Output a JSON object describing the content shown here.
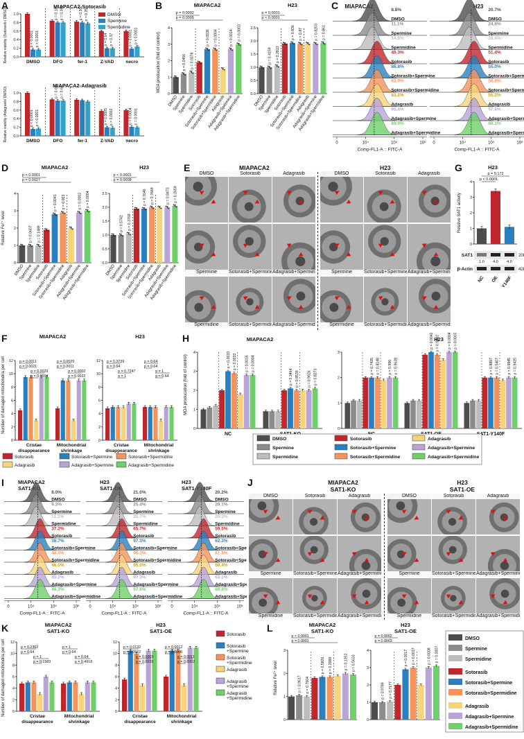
{
  "panel_letters": {
    "A": "A",
    "B": "B",
    "C": "C",
    "D": "D",
    "E": "E",
    "F": "F",
    "G": "G",
    "H": "H",
    "I": "I",
    "J": "J",
    "K": "K",
    "L": "L"
  },
  "colors": {
    "dmso": "#4d4d4d",
    "spermine": "#8c8c8c",
    "spermidine": "#bdbdbd",
    "soto": "#c0272d",
    "soto_spm": "#2a7fc1",
    "soto_spd": "#f4945c",
    "adag": "#f7d37a",
    "adag_spm": "#b9a4d6",
    "adag_spd": "#6fcf6a",
    "a_dmso": "#c0272d",
    "a_spm": "#2a7fc1",
    "a_spd": "#2fa3c9"
  },
  "A": {
    "title1": "MIAPACA2-Sotorasib",
    "title2": "MIAPACA2-Adagrasib",
    "legend": [
      "DMSO",
      "Spermine",
      "Spermidine"
    ],
    "ylabel1": "Relative viability (Sotorasib / DMSO)",
    "ylabel2": "Relative viability (Adagrasib/ DMSO)",
    "ticks": [
      "0.0",
      "0.2",
      "0.4",
      "0.6",
      "0.8",
      "1.0"
    ],
    "groups": [
      "DMSO",
      "DFO",
      "fer-1",
      "Z-VAD",
      "necro"
    ],
    "pvals1": [
      "p < 0.0001",
      "p < 0.0001",
      "p = 0.18",
      "p = 0.081",
      "p = 0.92",
      "p = 0.25",
      "p = 0.64",
      "p = 0.37",
      "p < 0.0001",
      "p < 0.0001"
    ],
    "pvals2": [
      "p < 0.0001",
      "p < 0.0001",
      "p = 0.69",
      "p = 0.65",
      "",
      "",
      "p = 0.0005",
      "p = 0.0002",
      "p = 0.0004",
      "p = 0.0001"
    ]
  },
  "chart_data": [
    {
      "type": "bar",
      "title": "MIAPACA2-Sotorasib",
      "categories": [
        "DMSO",
        "DFO",
        "fer-1",
        "Z-VAD",
        "necro"
      ],
      "ylim": [
        0,
        1.0
      ],
      "series": [
        {
          "name": "DMSO",
          "values": [
            1.0,
            0.84,
            0.82,
            0.6,
            0.6
          ]
        },
        {
          "name": "Spermine",
          "values": [
            0.17,
            0.8,
            0.8,
            0.2,
            0.19
          ]
        },
        {
          "name": "Spermidine",
          "values": [
            0.17,
            0.8,
            0.78,
            0.2,
            0.24
          ]
        }
      ]
    },
    {
      "type": "bar",
      "title": "MIAPACA2-Adagrasib",
      "categories": [
        "DMSO",
        "DFO",
        "fer-1",
        "Z-VAD",
        "necro"
      ],
      "ylim": [
        0,
        1.0
      ],
      "series": [
        {
          "name": "DMSO",
          "values": [
            1.0,
            0.85,
            0.84,
            0.58,
            0.6
          ]
        },
        {
          "name": "Spermine",
          "values": [
            0.16,
            0.82,
            0.83,
            0.2,
            0.21
          ]
        },
        {
          "name": "Spermidine",
          "values": [
            0.17,
            0.82,
            0.8,
            0.19,
            0.2
          ]
        }
      ]
    },
    {
      "type": "bar",
      "title": "MIAPACA2",
      "ylabel": "MDA producation (fold of control)",
      "ylim": [
        0,
        4
      ],
      "categories": [
        "DMSO",
        "Spermine",
        "Spermidine",
        "Sotorasib",
        "Sotorasib+Spermine",
        "Sotorasib+Spermidine",
        "Adagrasib",
        "Adagrasib+Spermine",
        "Adagrasib+Spermidine"
      ],
      "values": [
        1.0,
        1.2,
        1.3,
        1.9,
        2.7,
        2.7,
        1.5,
        2.7,
        3.0
      ]
    },
    {
      "type": "bar",
      "title": "H23",
      "ylim": [
        0,
        2.5
      ],
      "categories": [
        "DMSO",
        "Spermine",
        "Spermidine",
        "Sotorasib",
        "Sotorasib+Spermine",
        "Sotorasib+Spermidine",
        "Adagrasib",
        "Adagrasib+Spermine",
        "Adagrasib+Spermidine"
      ],
      "values": [
        1.0,
        1.0,
        1.05,
        1.9,
        1.92,
        1.9,
        1.9,
        1.9,
        1.92
      ]
    },
    {
      "type": "bar",
      "title": "MIAPACA2",
      "ylabel": "Relative Fe2+ level",
      "ylim": [
        0,
        4
      ],
      "categories": [
        "DMSO",
        "Spermine",
        "Spermidine",
        "Sotorasib",
        "Sotorasib+Spermine",
        "Sotorasib+Spermidine",
        "Adagrasib",
        "Adagrasib+Spermine",
        "Adagrasib+Spermidine"
      ],
      "values": [
        1.0,
        1.0,
        1.0,
        1.9,
        2.8,
        2.9,
        2.0,
        2.9,
        3.0
      ]
    },
    {
      "type": "bar",
      "title": "H23",
      "ylim": [
        0,
        2.5
      ],
      "categories": [
        "DMSO",
        "Spermine",
        "Spermidine",
        "Sotorasib",
        "Sotorasib+Spermine",
        "Sotorasib+Spermidine",
        "Adagrasib",
        "Adagrasib+Spermine",
        "Adagrasib+Spermidine"
      ],
      "values": [
        1.0,
        1.0,
        1.05,
        1.95,
        1.95,
        2.0,
        2.0,
        2.0,
        2.05
      ]
    },
    {
      "type": "bar",
      "title": "H23",
      "ylabel": "Relative SAT1 activity",
      "ylim": [
        0,
        4
      ],
      "categories": [
        "NC",
        "OE",
        "Y140F"
      ],
      "values": [
        1.0,
        3.4,
        1.1
      ]
    }
  ],
  "B": {
    "title1": "MIAPACA2",
    "title2": "H23",
    "ylabel": "MDA producation (fold of control)",
    "ticks1": [
      "0",
      "1",
      "2",
      "3",
      "4"
    ],
    "ticks2": [
      "0.0",
      "0.5",
      "1.0",
      "1.5",
      "2.0",
      "2.5"
    ],
    "cats": [
      "DMSO",
      "Spermine",
      "Spermidine",
      "Sotorasib",
      "Sotorasib+Spermine",
      "Sotorasib+Spermidine",
      "Adagrasib",
      "Adagrasib+Spermine",
      "Adagrasib+Spermidine"
    ],
    "p1": [
      "p = 0.0002",
      "p = 0.0005",
      "p = 0.0456",
      "p = 0.0078",
      "p = 0.0036",
      "p = 0.0004",
      "p = 0.0014",
      "p = 0.0003"
    ],
    "p2": [
      "p = 0.0001",
      "p < 0.0001",
      "p = 0.4159",
      "p = 0.2813",
      "p = 0.836",
      "p = 0.87",
      "p = 0.8203",
      "p = 0.861"
    ]
  },
  "C": {
    "title1": "MIAPACA2",
    "title2": "H23",
    "xlabel": "Comp-FL1-A :: FITC-A",
    "xticks": [
      "0",
      "10⁴",
      "10⁵",
      "10⁶"
    ],
    "rows": [
      {
        "label": "DMSO",
        "p1": "8.8%",
        "p2": "20.7%",
        "color": "#4d4d4d"
      },
      {
        "label": "Spermine",
        "p1": "11.1%",
        "p2": "24.8%",
        "color": "#8c8c8c"
      },
      {
        "label": "Spermidine",
        "p1": "14.8%",
        "p2": "28.4%",
        "color": "#bdbdbd"
      },
      {
        "label": "Sotorasib",
        "p1": "40.3%",
        "p2": "51.4%",
        "color": "#c0272d"
      },
      {
        "label": "Sotorasib+Spermine",
        "p1": "86.8%",
        "p2": "55.0%",
        "color": "#2a7fc1"
      },
      {
        "label": "Sotorasib+Spermidine",
        "p1": "83.9%",
        "p2": "56.8%",
        "color": "#f4945c"
      },
      {
        "label": "Adagrasib",
        "p1": "83.2%",
        "p2": "55.2%",
        "color": "#f7d37a"
      },
      {
        "label": "Adagrasib+Spermine",
        "p1": "95.4%",
        "p2": "57.6%",
        "color": "#b9a4d6"
      },
      {
        "label": "Adagrasib+Spermidine",
        "p1": "89.9%",
        "p2": "60.1%",
        "color": "#6fcf6a"
      }
    ]
  },
  "D": {
    "title1": "MIAPACA2",
    "title2": "H23",
    "ylabel": "Relative Fe²⁺ level",
    "ticks1": [
      "0",
      "1",
      "2",
      "3",
      "4"
    ],
    "ticks2": [
      "0.0",
      "0.5",
      "1.0",
      "1.5",
      "2.0",
      "2.5"
    ],
    "cats": [
      "DMSO",
      "Spermine",
      "Spermidine",
      "Sotorasib",
      "Sotorasib+Spermine",
      "Sotorasib+Spermidine",
      "Adagrasib",
      "Adagrasib+Spermine",
      "Adagrasib+Spermidine"
    ],
    "p1": [
      "p < 0.0001",
      "p = 0.0027",
      "p = 0.0607",
      "p = 0.1489",
      "p = 0.0041",
      "p = 0.003",
      "p = 0.0002",
      "p = 0.0004"
    ],
    "p2": [
      "p < 0.0001",
      "p = 0.0008",
      "p = 0.5742",
      "p = 0.3769",
      "p = 0.7646",
      "p = 0.7669",
      "p = 0.8473",
      "p = 0.2659"
    ]
  },
  "E": {
    "title1": "MIAPACA2",
    "title2": "H23",
    "labels": [
      "DMSO",
      "Sotorasib",
      "Adagrasib",
      "Spermine",
      "Sotorasib+Spermine",
      "Adagrasib+Spermine",
      "Spermidine",
      "Sotorasib+Spermidine",
      "Adagrasib+Spermidine"
    ]
  },
  "F": {
    "title1": "MIAPACA2",
    "title2": "H23",
    "ylabel": "Number of damaged mitochondria per cell",
    "ticks": [
      "0",
      "2",
      "4",
      "6",
      "8",
      "10",
      "12"
    ],
    "groups": [
      "Cristae disappearance",
      "Mitochondrial shrinkage"
    ],
    "legend": [
      "Sotorasib",
      "Sotorasib+Spermine",
      "Sotorasib+Spermidine",
      "Adagrasib",
      "Adagrasib+Spermine",
      "Adagrasib+Spermidine"
    ],
    "p1": [
      "p = 0.0011",
      "p = 0.0021",
      "p = 0.0029",
      "p = 0.0004",
      "p = 0.0029",
      "p = 0.0011",
      "p = 0.0002",
      "p = 0.0022"
    ],
    "p2": [
      "p = 0.3739",
      "p = 0.64",
      "p = 0.7247",
      "p = 1",
      "p = 0.64",
      "p = 0.64",
      "p = 1",
      "p = 0.64"
    ]
  },
  "G": {
    "title": "H23",
    "ylabel": "Relative SAT1 activity",
    "ticks": [
      "0",
      "1",
      "2",
      "3",
      "4"
    ],
    "p": [
      "p = 0.172",
      "p < 0.0001"
    ],
    "wb1": "SAT1",
    "wb2": "β-Actin",
    "kda1": "20kDa",
    "kda2": "42kDa",
    "ratios": [
      "1.0",
      "4.0",
      "4.0"
    ],
    "cats": [
      "NC",
      "OE",
      "Y140F"
    ]
  },
  "H": {
    "title1": "MIAPACA2",
    "title2": "H23",
    "ylabel": "MDA producation (fold of control)",
    "ticks1": [
      "0",
      "1",
      "2",
      "3",
      "4"
    ],
    "ticks2": [
      "0",
      "1",
      "2",
      "3"
    ],
    "groups1": [
      "NC",
      "SAT1-KO"
    ],
    "groups2": [
      "NC",
      "SAT1-OE",
      "SAT1-Y140F"
    ],
    "p1": [
      "p = 0.0033",
      "p = 0.0033",
      "p = 0.0016",
      "p = 0.0004",
      "p = 0.3464",
      "p = 0.8539",
      "p = 0.9626",
      "p = 0.8273"
    ],
    "p2": [
      "p = 0.7435",
      "p = 0.8148",
      "p = 0.996",
      "p = 0.9628",
      "p = 0.0042",
      "p = 0.0002",
      "p = 0.0004",
      "p = 0.0003",
      "p = 0.8897",
      "p = 0.5407",
      "p = 0.9845",
      "p = 0.9425"
    ],
    "legend": [
      "DMSO",
      "Sotorasib",
      "Adagrasib",
      "Spermine",
      "Sotorasib+Spermine",
      "Adagrasib+Spermine",
      "Spermidine",
      "Sotorasib+Spermidine",
      "Adagrasib+Spermidine"
    ]
  },
  "I": {
    "titles": [
      "MIAPACA2",
      "H23",
      "H23"
    ],
    "subtitles": [
      "SAT1-KO",
      "SAT1-OE",
      "SAT1-Y140F"
    ],
    "xlabel": "Comp-FL1-A :: FITC-A",
    "xticks": [
      "0",
      "10⁴",
      "10⁵",
      "10⁶"
    ],
    "rows": [
      {
        "label": "DMSO",
        "v": [
          "8.0%",
          "21.0%",
          "20.2%"
        ],
        "color": "#4d4d4d"
      },
      {
        "label": "Spermine",
        "v": [
          "9.3%",
          "25.4%",
          "20.1%"
        ],
        "color": "#8c8c8c"
      },
      {
        "label": "Spermidine",
        "v": [
          "11.2%",
          "25.7%",
          "20.3%"
        ],
        "color": "#bdbdbd"
      },
      {
        "label": "Sotorasib",
        "v": [
          "37.2%",
          "65.7%",
          "59.5%"
        ],
        "color": "#c0272d"
      },
      {
        "label": "Sotorasib+Spermine",
        "v": [
          "38.7%",
          "97.3%",
          "62.3%"
        ],
        "color": "#2a7fc1"
      },
      {
        "label": "Sotorasib+Spermidine",
        "v": [
          "40.5%",
          "96.3%",
          "61.8%"
        ],
        "color": "#f4945c"
      },
      {
        "label": "Adagrasib",
        "v": [
          "46.0%",
          "95.0%",
          "60.4%"
        ],
        "color": "#f7d37a"
      },
      {
        "label": "Adagrasib+Spermine",
        "v": [
          "45.2%",
          "97.3%",
          "63.1%"
        ],
        "color": "#b9a4d6"
      },
      {
        "label": "Adagrasib+Spermidine",
        "v": [
          "46.3%",
          "97.6%",
          "60.8%"
        ],
        "color": "#6fcf6a"
      }
    ]
  },
  "J": {
    "title1": "MIAPACA2",
    "sub1": "SAT1-KO",
    "title2": "H23",
    "sub2": "SAT1-OE",
    "labels": [
      "DMSO",
      "Sotorasib",
      "Adagrasib",
      "Spermine",
      "Sotorasib+Spermine",
      "Adagrasib+Spermine",
      "Spermidine",
      "Sotorasib+Spermidine",
      "Adagrasib+Spermidine"
    ]
  },
  "K": {
    "title1": "MIAPACA2",
    "sub1": "SAT1-KO",
    "title2": "H23",
    "sub2": "SAT1-OE",
    "ylabel": "Number of damaged mitochondria per cell",
    "ticks": [
      "0",
      "2",
      "4",
      "6",
      "8",
      "10",
      "12"
    ],
    "groups": [
      "Cristae disappearance",
      "Mitochondrial shrinkage"
    ],
    "legend": [
      "Sotorasib",
      "Sotorasib +Spermine",
      "Sotorasib +Spermidine",
      "Adagrasib",
      "Adagrasib +Spermine",
      "Adagrasib +Spermidine"
    ],
    "p1": [
      "p = 0.2302",
      "p = 0.64",
      "p = 1",
      "p = 0.1583",
      "p = 1",
      "p = 0.64",
      "p = 0.64",
      "p = 0.4918"
    ],
    "p2": [
      "p = 0.0132",
      "p = 0.0022",
      "p = 0.0003",
      "p = 0.0039",
      "p = 0.0012",
      "p = 0.0006",
      "p = 0.0011",
      "p = 0.0002"
    ]
  },
  "L": {
    "title1": "MIAPACA2",
    "sub1": "SAT1-KO",
    "title2": "H23",
    "sub2": "SAT1-OE",
    "ylabel": "Relative Fe²⁺ level",
    "ticks1": [
      "0",
      "1",
      "2",
      "3"
    ],
    "ticks2": [
      "0",
      "1",
      "2",
      "3",
      "4"
    ],
    "p1": [
      "p < 0.0001",
      "p = 0.0001",
      "p = 0.9617",
      "p = 0.7604",
      "p = 0.5826",
      "p = 0.2989",
      "p = 0.1352",
      "p = 0.5633"
    ],
    "p2": [
      "p = 0.0002",
      "p = 0.0003",
      "p = 0.9789",
      "p = 0.7177",
      "p = 0.0017",
      "p = 0.0037",
      "p = 0.0008",
      "p = 0.0007"
    ],
    "legend": [
      "DMSO",
      "Spermine",
      "Spermidine",
      "Sotorasib",
      "Sotorasib+Spermine",
      "Sotorasib+Spermidine",
      "Adagrasib",
      "Adagrasib+Spermine",
      "Adagrasib+Spermidine"
    ]
  }
}
